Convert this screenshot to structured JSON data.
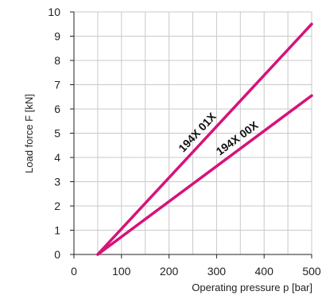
{
  "chart_data": {
    "type": "line",
    "xlabel": "Operating pressure p [bar]",
    "ylabel": "Load force F [kN]",
    "xlim": [
      0,
      500
    ],
    "ylim": [
      0,
      10
    ],
    "x_ticks": [
      0,
      100,
      200,
      300,
      400,
      500
    ],
    "y_ticks": [
      0,
      1,
      2,
      3,
      4,
      5,
      6,
      7,
      8,
      9,
      10
    ],
    "grid": true,
    "line_color": "#d6137a",
    "series": [
      {
        "name": "194X 01X",
        "x": [
          50,
          500
        ],
        "y": [
          0,
          9.5
        ]
      },
      {
        "name": "194X 00X",
        "x": [
          50,
          500
        ],
        "y": [
          0,
          6.55
        ]
      }
    ]
  }
}
